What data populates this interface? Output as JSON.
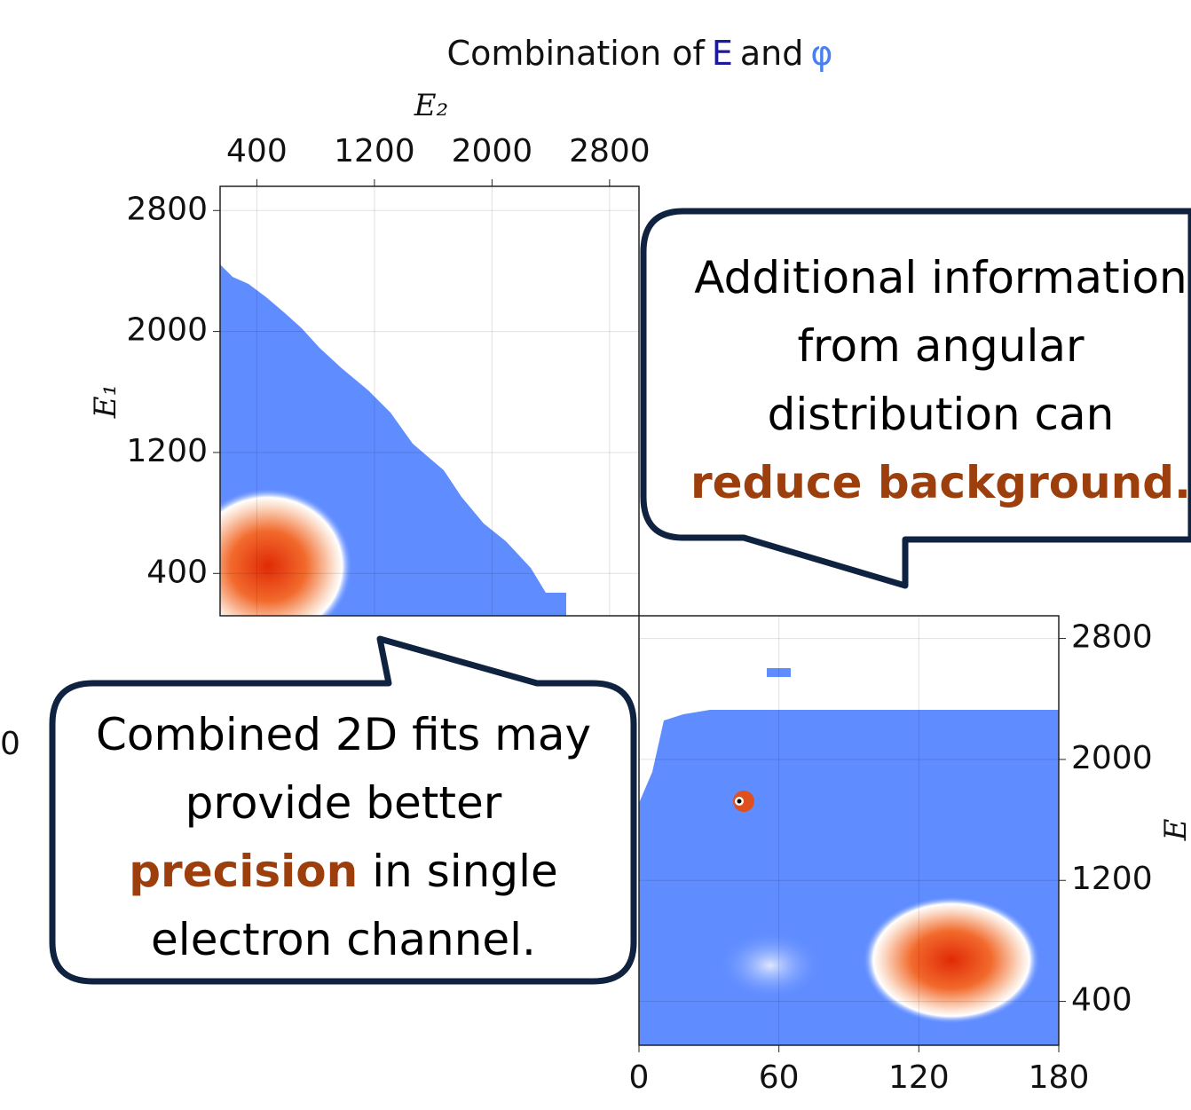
{
  "title": {
    "parts": [
      "Combination of",
      "E",
      "and",
      "φ"
    ]
  },
  "chart_data": [
    {
      "type": "heatmap",
      "xlabel": "E₂",
      "ylabel": "E₁",
      "xlim": [
        150,
        3000
      ],
      "xticks": [
        400,
        1200,
        2000,
        2800
      ],
      "ylim": [
        120,
        2960
      ],
      "yticks": [
        400,
        1200,
        2000,
        2800
      ],
      "grid": true
    },
    {
      "type": "heatmap",
      "ylabel": "E",
      "xlim": [
        0,
        180
      ],
      "xticks": [
        0,
        60,
        120,
        180
      ],
      "ylim": [
        110,
        2950
      ],
      "yticks": [
        400,
        1200,
        2000,
        2800
      ],
      "grid": true
    }
  ],
  "side_tick": "0",
  "callouts": [
    {
      "lines": [
        [
          {
            "text": "Additional information"
          }
        ],
        [
          {
            "text": "from angular"
          }
        ],
        [
          {
            "text": "distribution can"
          }
        ],
        [
          {
            "text": "reduce background.",
            "highlight": true
          }
        ]
      ]
    },
    {
      "lines": [
        [
          {
            "text": "Combined 2D fits may"
          }
        ],
        [
          {
            "text": "provide better"
          }
        ],
        [
          {
            "text": "precision",
            "highlight": true
          },
          {
            "text": "in single"
          }
        ],
        [
          {
            "text": "electron channel."
          }
        ]
      ]
    }
  ]
}
